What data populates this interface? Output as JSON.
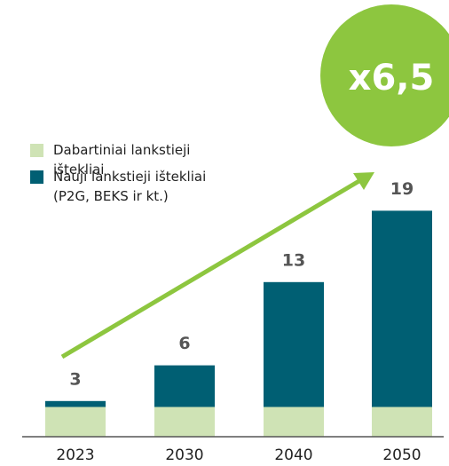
{
  "chart_data": {
    "type": "stacked_bar",
    "categories": [
      "2023",
      "2030",
      "2040",
      "2050"
    ],
    "series": [
      {
        "name": "Dabartiniai lankstieji ištekliai",
        "color": "#cfe3b5",
        "values": [
          2.5,
          2.5,
          2.5,
          2.5
        ]
      },
      {
        "name": "Nauji lankstieji ištekliai (P2G, BEKS ir kt.)",
        "color": "#005f73",
        "values": [
          0.5,
          3.5,
          10.5,
          16.5
        ]
      }
    ],
    "totals": [
      3,
      6,
      13,
      19
    ],
    "ylim": [
      0,
      20
    ],
    "annotation": "x6,5",
    "annotation_color": "#8dc63f"
  }
}
